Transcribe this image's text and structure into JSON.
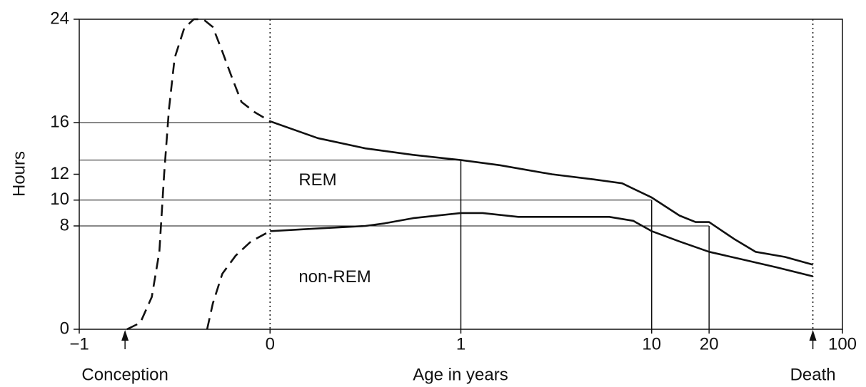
{
  "chart_data": {
    "type": "line",
    "ylabel": "Hours",
    "xlabel": "Age in years",
    "ylim": [
      0,
      24
    ],
    "yticks": [
      0,
      8,
      10,
      12,
      16,
      24
    ],
    "xlim": [
      -1,
      100
    ],
    "xticks": [
      {
        "value": -1,
        "label": "−1"
      },
      0,
      1,
      10,
      20,
      100
    ],
    "x_scale": "linear below 1, log above 1",
    "color": "#111111",
    "series": [
      {
        "line_style": "dashed",
        "x": [
          -0.75,
          -0.68,
          -0.62,
          -0.58,
          -0.555,
          -0.53,
          -0.5,
          -0.45,
          -0.4,
          -0.35,
          -0.3,
          -0.25,
          -0.2,
          -0.15,
          -0.08,
          0
        ],
        "values": [
          0,
          0.5,
          2.5,
          6,
          12,
          17,
          21,
          23.3,
          24,
          24,
          23.4,
          21.5,
          19.5,
          17.6,
          16.8,
          16.1
        ]
      },
      {
        "line_style": "solid",
        "x": [
          0,
          0.25,
          0.5,
          0.75,
          1,
          1.6,
          3,
          5,
          7,
          10,
          14,
          17,
          20,
          27,
          35,
          50,
          70
        ],
        "values": [
          16.1,
          14.8,
          14.0,
          13.5,
          13.1,
          12.7,
          12.0,
          11.6,
          11.3,
          10.2,
          8.8,
          8.3,
          8.3,
          7.0,
          6.0,
          5.6,
          5.0
        ]
      },
      {
        "line_style": "dashed",
        "x": [
          -0.33,
          -0.3,
          -0.25,
          -0.18,
          -0.1,
          0
        ],
        "values": [
          0,
          2,
          4.3,
          5.7,
          6.8,
          7.6
        ]
      },
      {
        "line_style": "solid",
        "x": [
          0,
          0.25,
          0.5,
          0.6,
          0.75,
          1,
          1.3,
          2,
          3,
          6,
          8,
          10,
          14,
          20,
          30,
          45,
          70
        ],
        "values": [
          7.6,
          7.8,
          8.0,
          8.2,
          8.6,
          9.0,
          9.0,
          8.7,
          8.7,
          8.7,
          8.4,
          7.6,
          6.8,
          6.0,
          5.4,
          4.8,
          4.1
        ]
      }
    ],
    "guides": [
      {
        "x": 0,
        "y": 16
      },
      {
        "x": 1,
        "y": 13.1
      },
      {
        "x": 10,
        "y": 10
      },
      {
        "x": 20,
        "y": 8
      }
    ],
    "dotted_verticals": [
      0,
      70
    ],
    "region_labels": [
      {
        "text": "REM",
        "x": 0.15,
        "y": 11.5
      },
      {
        "text": "non-REM",
        "x": 0.15,
        "y": 4
      }
    ],
    "annotations": [
      {
        "text": "Conception",
        "x": -0.76
      },
      {
        "text": "Death",
        "x": 70
      }
    ]
  }
}
